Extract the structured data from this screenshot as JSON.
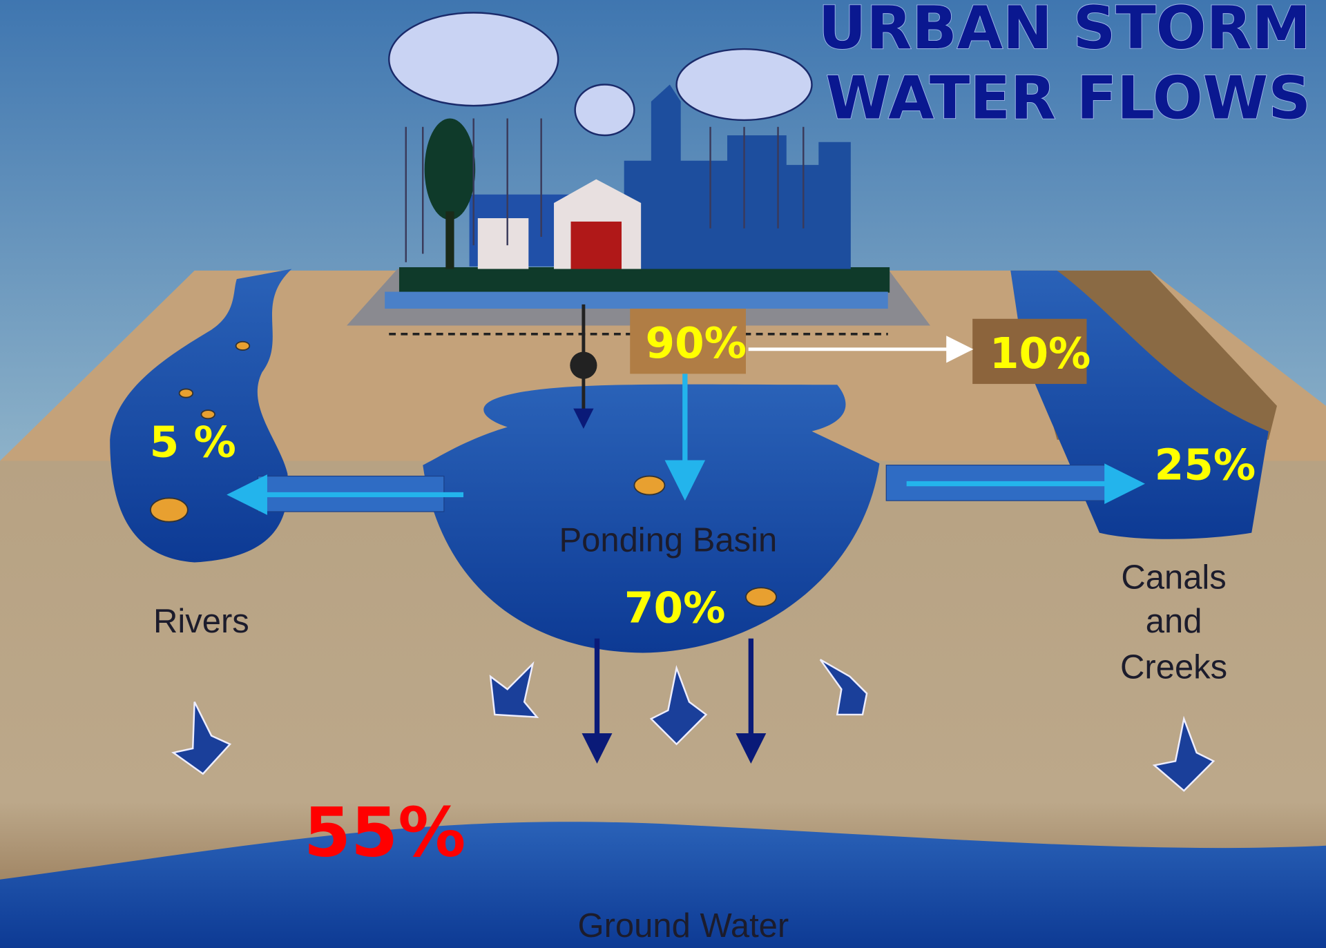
{
  "header": {
    "title": [
      "URBAN STORM",
      "WATER FLOWS"
    ]
  },
  "labels": {
    "rivers": "Rivers",
    "ponding_basin": "Ponding Basin",
    "canals": [
      "Canals",
      "and",
      "Creeks"
    ],
    "ground_water": "Ground Water"
  },
  "flows": {
    "runoff": "90%",
    "evaporation": "10%",
    "rivers": "5 %",
    "canals": "25%",
    "basin": "70%",
    "ground_water": "55%"
  }
}
